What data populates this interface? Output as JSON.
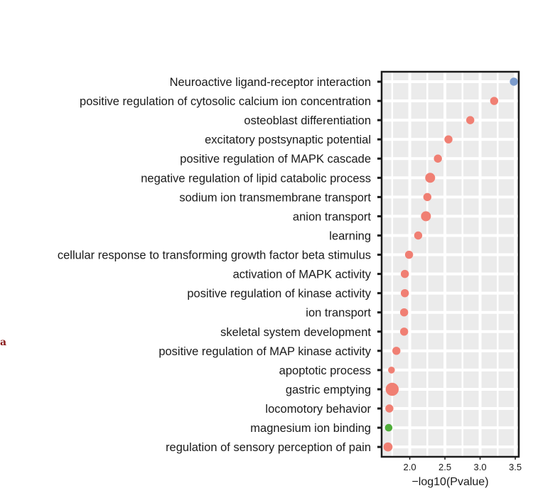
{
  "page_marker": "a",
  "chart_data": {
    "type": "scatter",
    "xlabel": "−log10(Pvalue)",
    "xlim": [
      1.6,
      3.55
    ],
    "xticks": [
      2.0,
      2.5,
      3.0,
      3.5
    ],
    "xtick_labels": [
      "2.0",
      "2.5",
      "3.0",
      "3.5"
    ],
    "grid": true,
    "categories": [
      "Neuroactive ligand-receptor interaction",
      "positive regulation of cytosolic calcium ion concentration",
      "osteoblast differentiation",
      "excitatory postsynaptic potential",
      "positive regulation of MAPK cascade",
      "negative regulation of lipid catabolic process",
      "sodium ion transmembrane transport",
      "anion transport",
      "learning",
      "cellular response to transforming growth factor beta stimulus",
      "activation of MAPK activity",
      "positive regulation of kinase activity",
      "ion transport",
      "skeletal system development",
      "positive regulation of MAP kinase activity",
      "apoptotic process",
      "gastric emptying",
      "locomotory behavior",
      "magnesium ion binding",
      "regulation of sensory perception of pain"
    ],
    "points": [
      {
        "x": 3.48,
        "size": 2,
        "color": "#7b9bcc"
      },
      {
        "x": 3.2,
        "size": 2,
        "color": "#f07f73"
      },
      {
        "x": 2.86,
        "size": 2,
        "color": "#f07f73"
      },
      {
        "x": 2.55,
        "size": 2,
        "color": "#f07f73"
      },
      {
        "x": 2.4,
        "size": 2,
        "color": "#f07f73"
      },
      {
        "x": 2.29,
        "size": 4,
        "color": "#f07f73"
      },
      {
        "x": 2.25,
        "size": 2,
        "color": "#f07f73"
      },
      {
        "x": 2.23,
        "size": 4,
        "color": "#f07f73"
      },
      {
        "x": 2.12,
        "size": 2,
        "color": "#f07f73"
      },
      {
        "x": 1.99,
        "size": 2,
        "color": "#f07f73"
      },
      {
        "x": 1.93,
        "size": 2,
        "color": "#f07f73"
      },
      {
        "x": 1.93,
        "size": 2,
        "color": "#f07f73"
      },
      {
        "x": 1.92,
        "size": 2,
        "color": "#f07f73"
      },
      {
        "x": 1.92,
        "size": 2,
        "color": "#f07f73"
      },
      {
        "x": 1.81,
        "size": 2,
        "color": "#f07f73"
      },
      {
        "x": 1.74,
        "size": 1,
        "color": "#f07f73"
      },
      {
        "x": 1.75,
        "size": 9,
        "color": "#f07f73"
      },
      {
        "x": 1.71,
        "size": 2,
        "color": "#f07f73"
      },
      {
        "x": 1.7,
        "size": 1.5,
        "color": "#4fae3a"
      },
      {
        "x": 1.69,
        "size": 3,
        "color": "#f07f73"
      }
    ],
    "colors": {
      "panel_bg": "#ebebeb",
      "grid": "#ffffff",
      "frame": "#1a1a1a"
    }
  }
}
